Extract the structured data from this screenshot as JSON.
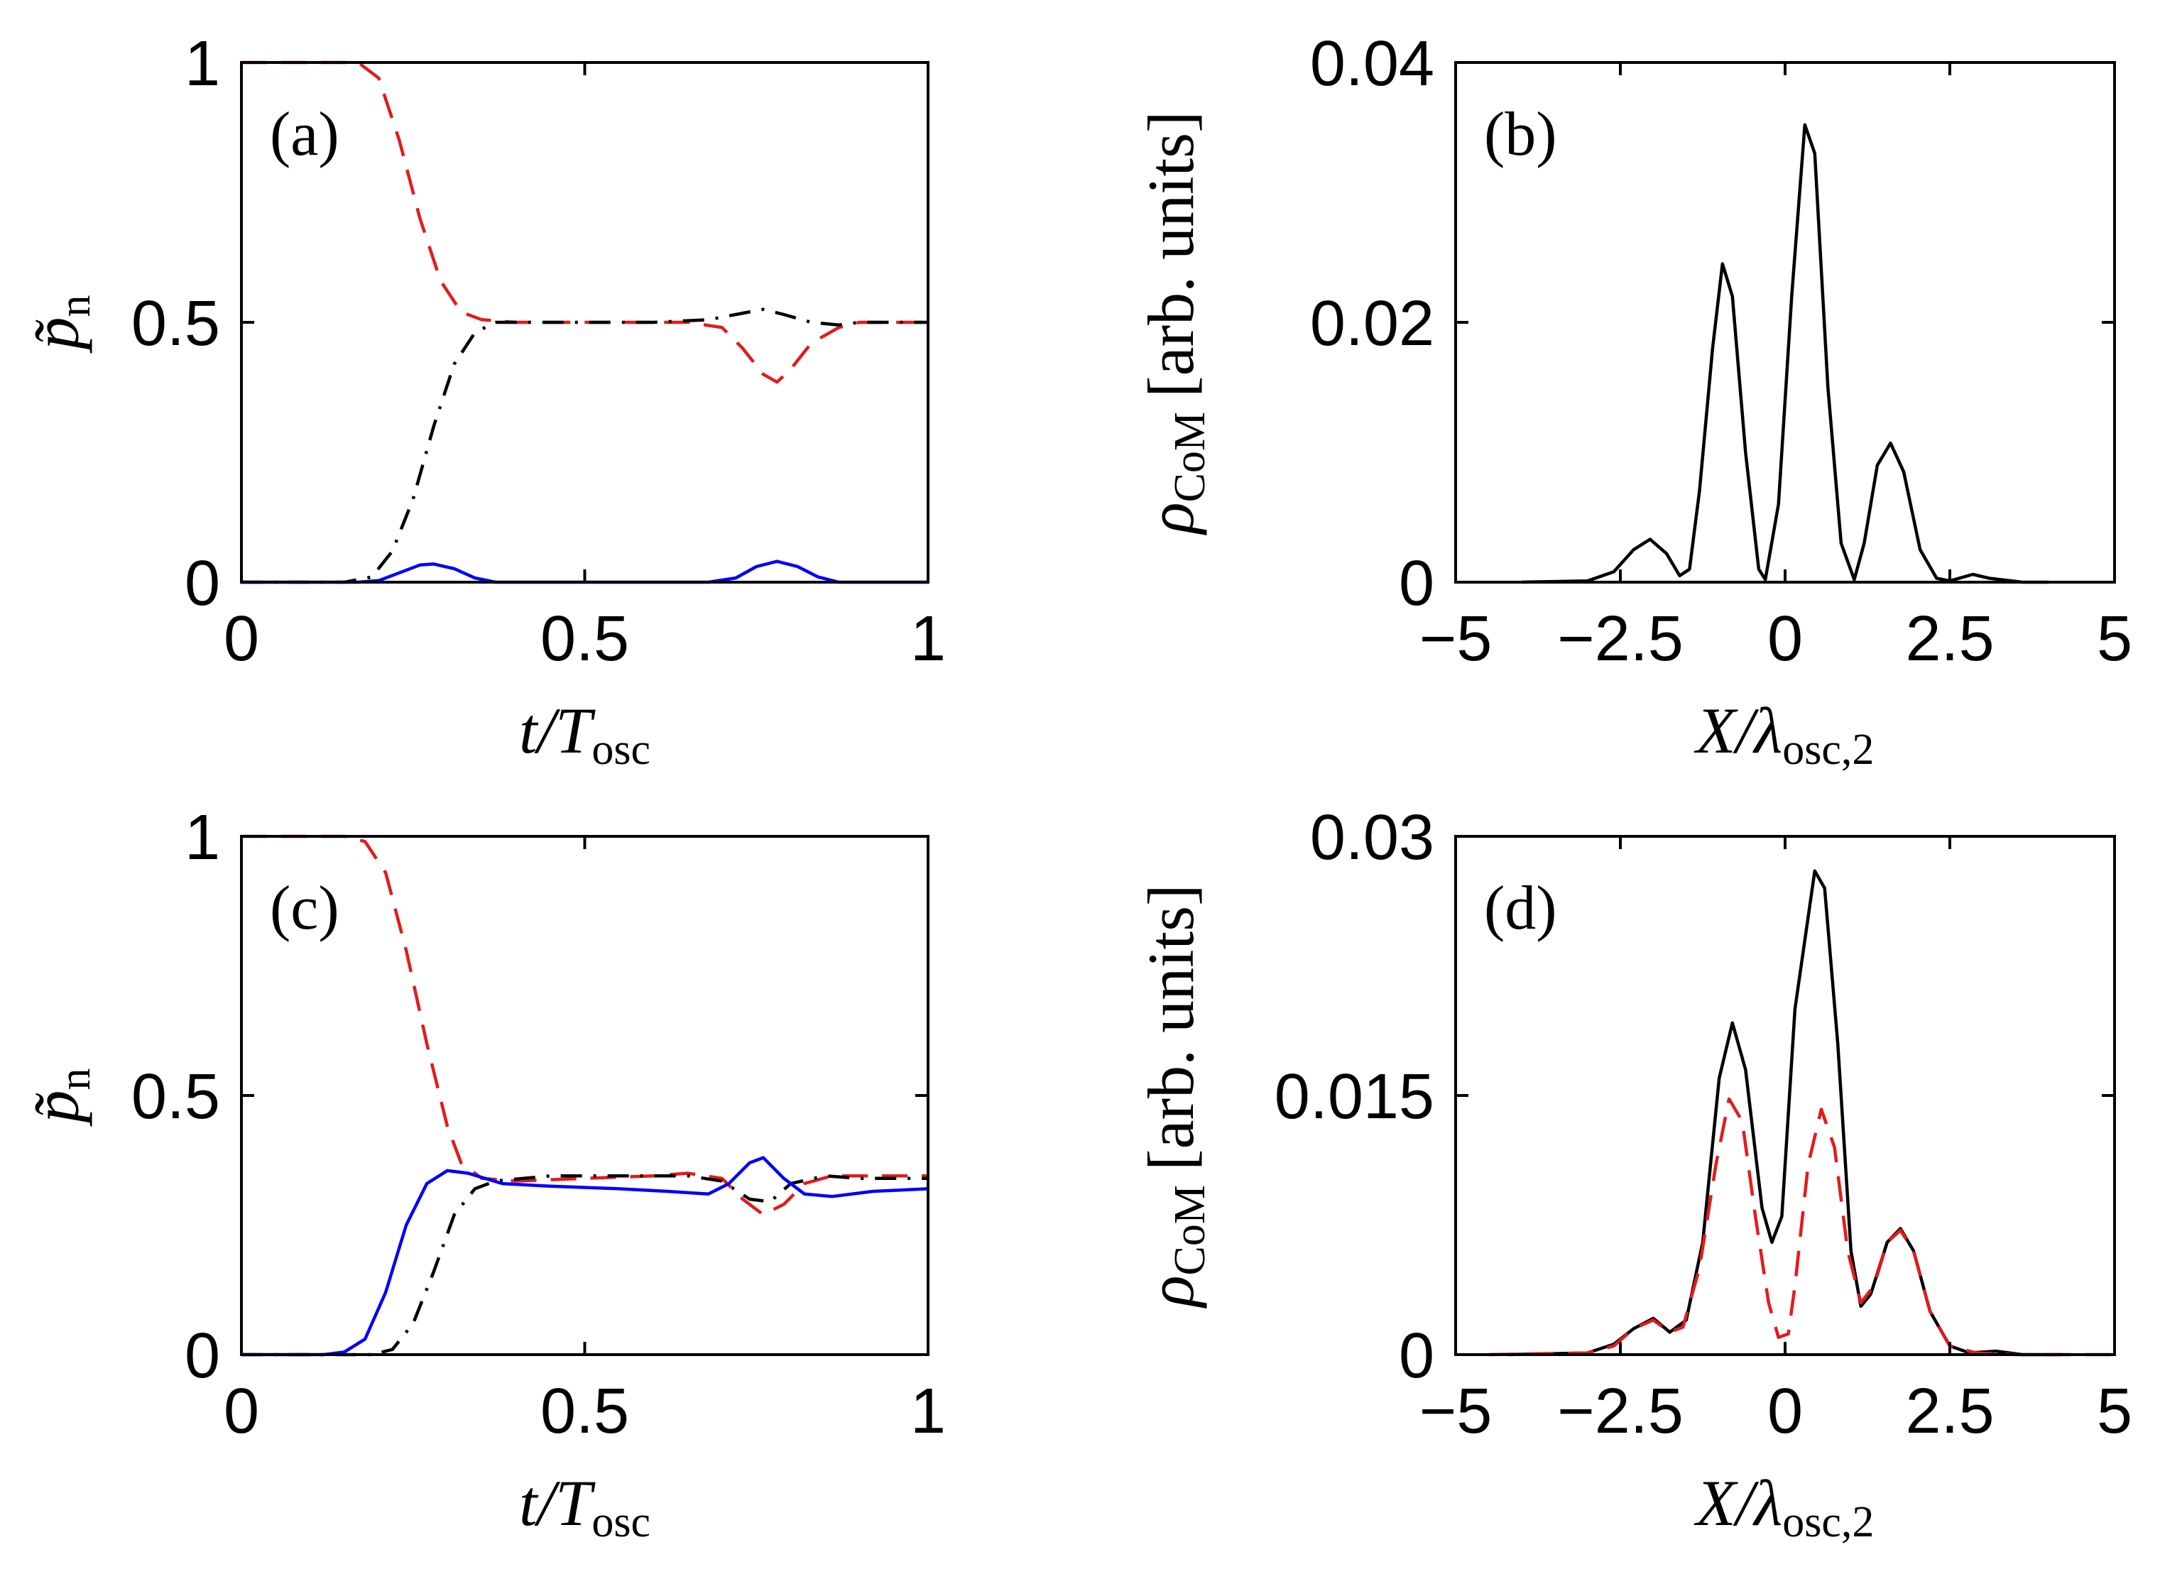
{
  "chart_data": [
    {
      "id": "a",
      "type": "line",
      "panel_label": "(a)",
      "xlabel_main": "t/T",
      "xlabel_sub": "osc",
      "ylabel": "p̃",
      "ylabel_sub": "n",
      "xlim": [
        0,
        1
      ],
      "ylim": [
        0,
        1
      ],
      "xticks": [
        0,
        0.5,
        1
      ],
      "xtick_labels": [
        "0",
        "0.5",
        "1"
      ],
      "yticks": [
        0,
        0.5,
        1
      ],
      "ytick_labels": [
        "0",
        "0.5",
        "1"
      ],
      "series": [
        {
          "name": "red-dashed",
          "color": "#e41a1c",
          "style": "dashed",
          "points": [
            [
              0,
              1
            ],
            [
              0.1,
              1
            ],
            [
              0.17,
              1
            ],
            [
              0.2,
              0.97
            ],
            [
              0.23,
              0.85
            ],
            [
              0.26,
              0.7
            ],
            [
              0.29,
              0.58
            ],
            [
              0.32,
              0.52
            ],
            [
              0.35,
              0.505
            ],
            [
              0.4,
              0.5
            ],
            [
              0.5,
              0.5
            ],
            [
              0.6,
              0.5
            ],
            [
              0.65,
              0.5
            ],
            [
              0.7,
              0.49
            ],
            [
              0.73,
              0.45
            ],
            [
              0.76,
              0.4
            ],
            [
              0.78,
              0.385
            ],
            [
              0.8,
              0.41
            ],
            [
              0.83,
              0.46
            ],
            [
              0.87,
              0.49
            ],
            [
              0.9,
              0.5
            ],
            [
              1,
              0.5
            ]
          ]
        },
        {
          "name": "black-dashdot",
          "color": "#000000",
          "style": "dashdot",
          "points": [
            [
              0,
              0
            ],
            [
              0.15,
              0
            ],
            [
              0.19,
              0.01
            ],
            [
              0.22,
              0.06
            ],
            [
              0.25,
              0.16
            ],
            [
              0.28,
              0.3
            ],
            [
              0.31,
              0.42
            ],
            [
              0.34,
              0.48
            ],
            [
              0.37,
              0.5
            ],
            [
              0.5,
              0.5
            ],
            [
              0.6,
              0.5
            ],
            [
              0.68,
              0.505
            ],
            [
              0.72,
              0.515
            ],
            [
              0.76,
              0.525
            ],
            [
              0.79,
              0.515
            ],
            [
              0.83,
              0.5
            ],
            [
              0.87,
              0.495
            ],
            [
              0.9,
              0.5
            ],
            [
              1,
              0.5
            ]
          ]
        },
        {
          "name": "blue-solid",
          "color": "#0000ff",
          "style": "solid",
          "points": [
            [
              0,
              0
            ],
            [
              0.17,
              0
            ],
            [
              0.2,
              0.003
            ],
            [
              0.23,
              0.018
            ],
            [
              0.26,
              0.033
            ],
            [
              0.28,
              0.035
            ],
            [
              0.31,
              0.026
            ],
            [
              0.34,
              0.008
            ],
            [
              0.37,
              0
            ],
            [
              0.5,
              0
            ],
            [
              0.68,
              0
            ],
            [
              0.72,
              0.008
            ],
            [
              0.75,
              0.03
            ],
            [
              0.78,
              0.04
            ],
            [
              0.81,
              0.03
            ],
            [
              0.84,
              0.01
            ],
            [
              0.87,
              0
            ],
            [
              1,
              0
            ]
          ]
        }
      ]
    },
    {
      "id": "b",
      "type": "line",
      "panel_label": "(b)",
      "xlabel_main": "X/λ",
      "xlabel_sub": "osc,2",
      "ylabel": "ρ",
      "ylabel_sub": "CoM",
      "ylabel_rest": "[arb. units]",
      "xlim": [
        -5,
        5
      ],
      "ylim": [
        0,
        0.04
      ],
      "xticks": [
        -5,
        -2.5,
        0,
        2.5,
        5
      ],
      "xtick_labels": [
        "−5",
        "−2.5",
        "0",
        "2.5",
        "5"
      ],
      "yticks": [
        0,
        0.02,
        0.04
      ],
      "ytick_labels": [
        "0",
        "0.02",
        "0.04"
      ],
      "series": [
        {
          "name": "black-solid",
          "color": "#000000",
          "style": "solid",
          "points": [
            [
              -4,
              0
            ],
            [
              -3,
              0.0001
            ],
            [
              -2.6,
              0.0008
            ],
            [
              -2.3,
              0.0025
            ],
            [
              -2.05,
              0.0033
            ],
            [
              -1.8,
              0.0022
            ],
            [
              -1.6,
              0.0005
            ],
            [
              -1.45,
              0.001
            ],
            [
              -1.3,
              0.007
            ],
            [
              -1.1,
              0.018
            ],
            [
              -0.95,
              0.0245
            ],
            [
              -0.8,
              0.022
            ],
            [
              -0.6,
              0.01
            ],
            [
              -0.4,
              0.001
            ],
            [
              -0.3,
              0.0002
            ],
            [
              -0.1,
              0.006
            ],
            [
              0.1,
              0.022
            ],
            [
              0.3,
              0.0352
            ],
            [
              0.45,
              0.033
            ],
            [
              0.65,
              0.015
            ],
            [
              0.85,
              0.003
            ],
            [
              1.05,
              0.0002
            ],
            [
              1.2,
              0.003
            ],
            [
              1.4,
              0.009
            ],
            [
              1.6,
              0.0107
            ],
            [
              1.8,
              0.0085
            ],
            [
              2.05,
              0.0025
            ],
            [
              2.3,
              0.0003
            ],
            [
              2.5,
              0.0001
            ],
            [
              2.85,
              0.0006
            ],
            [
              3.1,
              0.0003
            ],
            [
              3.6,
              0
            ],
            [
              4,
              0
            ]
          ]
        }
      ]
    },
    {
      "id": "c",
      "type": "line",
      "panel_label": "(c)",
      "xlabel_main": "t/T",
      "xlabel_sub": "osc",
      "ylabel": "p̃",
      "ylabel_sub": "n",
      "xlim": [
        0,
        1
      ],
      "ylim": [
        0,
        1
      ],
      "xticks": [
        0,
        0.5,
        1
      ],
      "xtick_labels": [
        "0",
        "0.5",
        "1"
      ],
      "yticks": [
        0,
        0.5,
        1
      ],
      "ytick_labels": [
        "0",
        "0.5",
        "1"
      ],
      "series": [
        {
          "name": "red-dashed",
          "color": "#e41a1c",
          "style": "dashed",
          "points": [
            [
              0,
              1
            ],
            [
              0.15,
              1
            ],
            [
              0.18,
              0.99
            ],
            [
              0.21,
              0.93
            ],
            [
              0.24,
              0.78
            ],
            [
              0.27,
              0.6
            ],
            [
              0.3,
              0.44
            ],
            [
              0.32,
              0.37
            ],
            [
              0.35,
              0.34
            ],
            [
              0.4,
              0.335
            ],
            [
              0.5,
              0.34
            ],
            [
              0.6,
              0.345
            ],
            [
              0.65,
              0.35
            ],
            [
              0.7,
              0.34
            ],
            [
              0.73,
              0.3
            ],
            [
              0.76,
              0.27
            ],
            [
              0.79,
              0.29
            ],
            [
              0.82,
              0.33
            ],
            [
              0.86,
              0.345
            ],
            [
              0.9,
              0.345
            ],
            [
              1,
              0.345
            ]
          ]
        },
        {
          "name": "black-dashdot",
          "color": "#000000",
          "style": "dashdot",
          "points": [
            [
              0,
              0
            ],
            [
              0.19,
              0
            ],
            [
              0.22,
              0.01
            ],
            [
              0.25,
              0.06
            ],
            [
              0.28,
              0.16
            ],
            [
              0.31,
              0.27
            ],
            [
              0.34,
              0.32
            ],
            [
              0.37,
              0.335
            ],
            [
              0.45,
              0.345
            ],
            [
              0.55,
              0.345
            ],
            [
              0.65,
              0.345
            ],
            [
              0.7,
              0.335
            ],
            [
              0.74,
              0.3
            ],
            [
              0.77,
              0.295
            ],
            [
              0.8,
              0.33
            ],
            [
              0.85,
              0.345
            ],
            [
              0.9,
              0.34
            ],
            [
              1,
              0.34
            ]
          ]
        },
        {
          "name": "blue-solid",
          "color": "#0000ff",
          "style": "solid",
          "points": [
            [
              0,
              0
            ],
            [
              0.12,
              0
            ],
            [
              0.15,
              0.005
            ],
            [
              0.18,
              0.03
            ],
            [
              0.21,
              0.12
            ],
            [
              0.24,
              0.25
            ],
            [
              0.27,
              0.33
            ],
            [
              0.3,
              0.355
            ],
            [
              0.33,
              0.35
            ],
            [
              0.38,
              0.33
            ],
            [
              0.45,
              0.325
            ],
            [
              0.55,
              0.32
            ],
            [
              0.62,
              0.315
            ],
            [
              0.68,
              0.31
            ],
            [
              0.71,
              0.33
            ],
            [
              0.74,
              0.37
            ],
            [
              0.76,
              0.38
            ],
            [
              0.79,
              0.34
            ],
            [
              0.82,
              0.31
            ],
            [
              0.86,
              0.305
            ],
            [
              0.92,
              0.315
            ],
            [
              1,
              0.32
            ]
          ]
        }
      ]
    },
    {
      "id": "d",
      "type": "line",
      "panel_label": "(d)",
      "xlabel_main": "X/λ",
      "xlabel_sub": "osc,2",
      "ylabel": "ρ",
      "ylabel_sub": "CoM",
      "ylabel_rest": "[arb. units]",
      "xlim": [
        -5,
        5
      ],
      "ylim": [
        0,
        0.03
      ],
      "xticks": [
        -5,
        -2.5,
        0,
        2.5,
        5
      ],
      "xtick_labels": [
        "−5",
        "−2.5",
        "0",
        "2.5",
        "5"
      ],
      "yticks": [
        0,
        0.015,
        0.03
      ],
      "ytick_labels": [
        "0",
        "0.015",
        "0.03"
      ],
      "series": [
        {
          "name": "black-solid",
          "color": "#000000",
          "style": "solid",
          "points": [
            [
              -4.2,
              0
            ],
            [
              -3,
              0.0001
            ],
            [
              -2.6,
              0.0006
            ],
            [
              -2.3,
              0.0015
            ],
            [
              -2,
              0.0021
            ],
            [
              -1.75,
              0.0013
            ],
            [
              -1.5,
              0.002
            ],
            [
              -1.25,
              0.0065
            ],
            [
              -1,
              0.016
            ],
            [
              -0.8,
              0.0192
            ],
            [
              -0.6,
              0.0165
            ],
            [
              -0.35,
              0.0085
            ],
            [
              -0.2,
              0.0065
            ],
            [
              -0.05,
              0.008
            ],
            [
              0.15,
              0.02
            ],
            [
              0.45,
              0.028
            ],
            [
              0.6,
              0.027
            ],
            [
              0.8,
              0.018
            ],
            [
              1,
              0.006
            ],
            [
              1.15,
              0.0028
            ],
            [
              1.3,
              0.0035
            ],
            [
              1.55,
              0.0065
            ],
            [
              1.75,
              0.0073
            ],
            [
              1.95,
              0.006
            ],
            [
              2.2,
              0.0025
            ],
            [
              2.5,
              0.0005
            ],
            [
              2.8,
              0.0001
            ],
            [
              3.2,
              0.0002
            ],
            [
              3.6,
              0
            ],
            [
              4.2,
              0
            ]
          ]
        },
        {
          "name": "red-dashed",
          "color": "#e41a1c",
          "style": "dashed",
          "points": [
            [
              -4.5,
              0
            ],
            [
              -3,
              0.0001
            ],
            [
              -2.6,
              0.0005
            ],
            [
              -2.3,
              0.0015
            ],
            [
              -2,
              0.002
            ],
            [
              -1.75,
              0.0013
            ],
            [
              -1.55,
              0.0016
            ],
            [
              -1.3,
              0.005
            ],
            [
              -1.05,
              0.011
            ],
            [
              -0.85,
              0.0148
            ],
            [
              -0.65,
              0.0135
            ],
            [
              -0.45,
              0.008
            ],
            [
              -0.25,
              0.003
            ],
            [
              -0.1,
              0.001
            ],
            [
              0.05,
              0.0012
            ],
            [
              0.15,
              0.004
            ],
            [
              0.35,
              0.011
            ],
            [
              0.55,
              0.0142
            ],
            [
              0.75,
              0.012
            ],
            [
              0.95,
              0.006
            ],
            [
              1.15,
              0.003
            ],
            [
              1.35,
              0.004
            ],
            [
              1.55,
              0.0065
            ],
            [
              1.75,
              0.0072
            ],
            [
              1.95,
              0.006
            ],
            [
              2.2,
              0.0025
            ],
            [
              2.5,
              0.0005
            ],
            [
              2.9,
              0.0001
            ],
            [
              3.5,
              0
            ],
            [
              4.5,
              0
            ],
            [
              5,
              0
            ]
          ]
        }
      ]
    }
  ]
}
